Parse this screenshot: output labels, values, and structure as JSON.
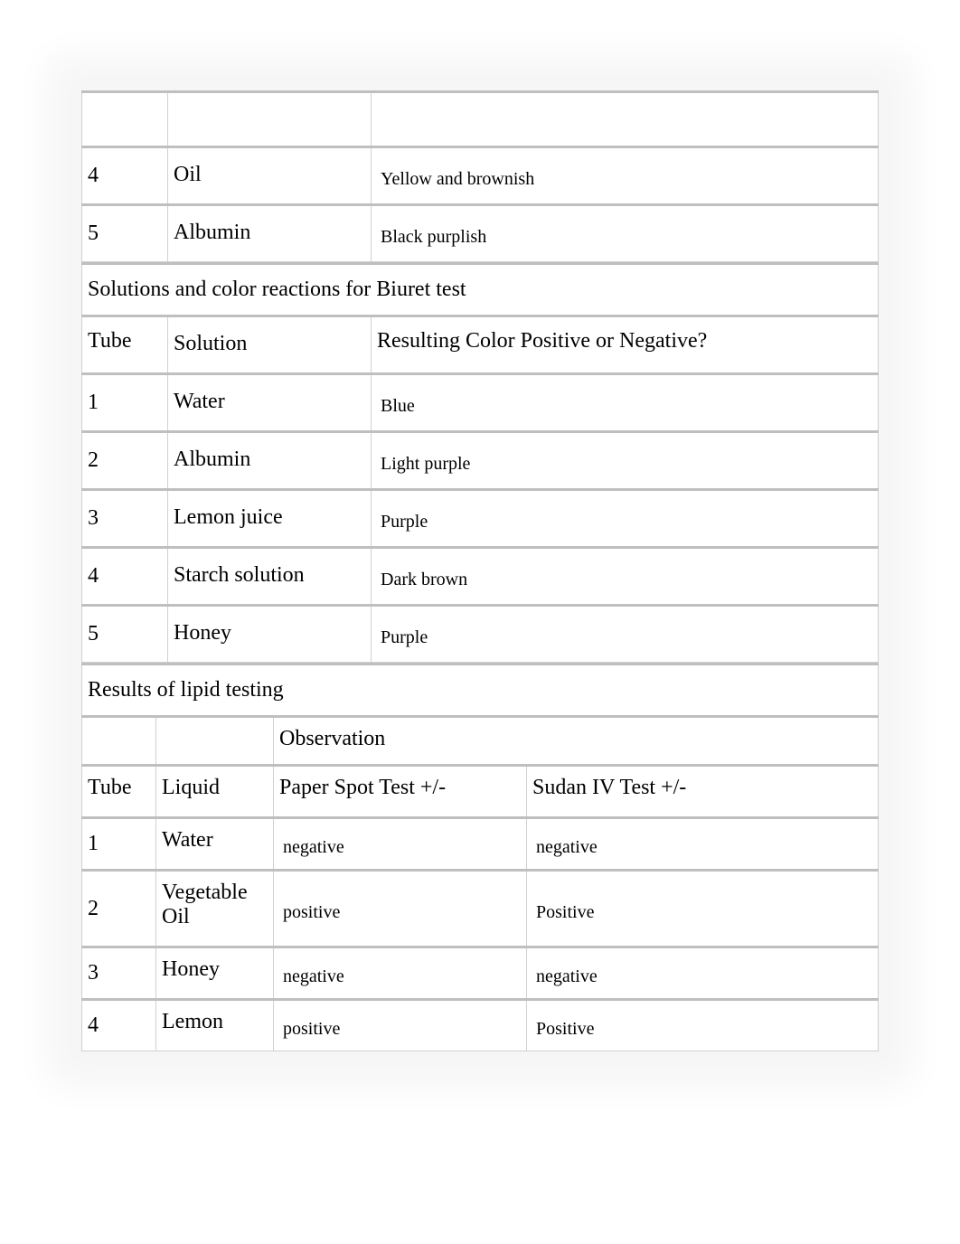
{
  "colors": {
    "page_bg": "#ffffff",
    "cell_border": "#d0d0d0",
    "cell_top_border": "#bfbfbf",
    "text": "#000000"
  },
  "fonts": {
    "family": "Times New Roman",
    "header_size_pt": 18,
    "value_size_pt": 15
  },
  "table1": {
    "rows": [
      {
        "tube": "4",
        "solution": "Oil",
        "result": "Yellow and brownish"
      },
      {
        "tube": "5",
        "solution": "Albumin",
        "result": "Black purplish"
      }
    ]
  },
  "biuret": {
    "title": "Solutions and color reactions for Biuret test",
    "columns": {
      "tube": "Tube",
      "solution": "Solution",
      "result": "Resulting Color Positive or Negative?"
    },
    "rows": [
      {
        "tube": "1",
        "solution": "Water",
        "result": "Blue"
      },
      {
        "tube": "2",
        "solution": "Albumin",
        "result": "Light purple"
      },
      {
        "tube": "3",
        "solution": "Lemon juice",
        "result": "Purple"
      },
      {
        "tube": "4",
        "solution": "Starch solution",
        "result": "Dark brown"
      },
      {
        "tube": "5",
        "solution": "Honey",
        "result": "Purple"
      }
    ]
  },
  "lipid": {
    "title": "Results of lipid testing",
    "columns": {
      "tube": "Tube",
      "liquid": "Liquid",
      "observation": "Observation",
      "paper": "Paper Spot Test +/-",
      "sudan": "Sudan IV Test +/-"
    },
    "rows": [
      {
        "tube": "1",
        "liquid": "Water",
        "paper": "negative",
        "sudan": "negative"
      },
      {
        "tube": "2",
        "liquid": "Vegetable Oil",
        "paper": "positive",
        "sudan": "Positive"
      },
      {
        "tube": "3",
        "liquid": "Honey",
        "paper": "negative",
        "sudan": "negative"
      },
      {
        "tube": "4",
        "liquid": "Lemon",
        "paper": "positive",
        "sudan": "Positive"
      }
    ]
  }
}
